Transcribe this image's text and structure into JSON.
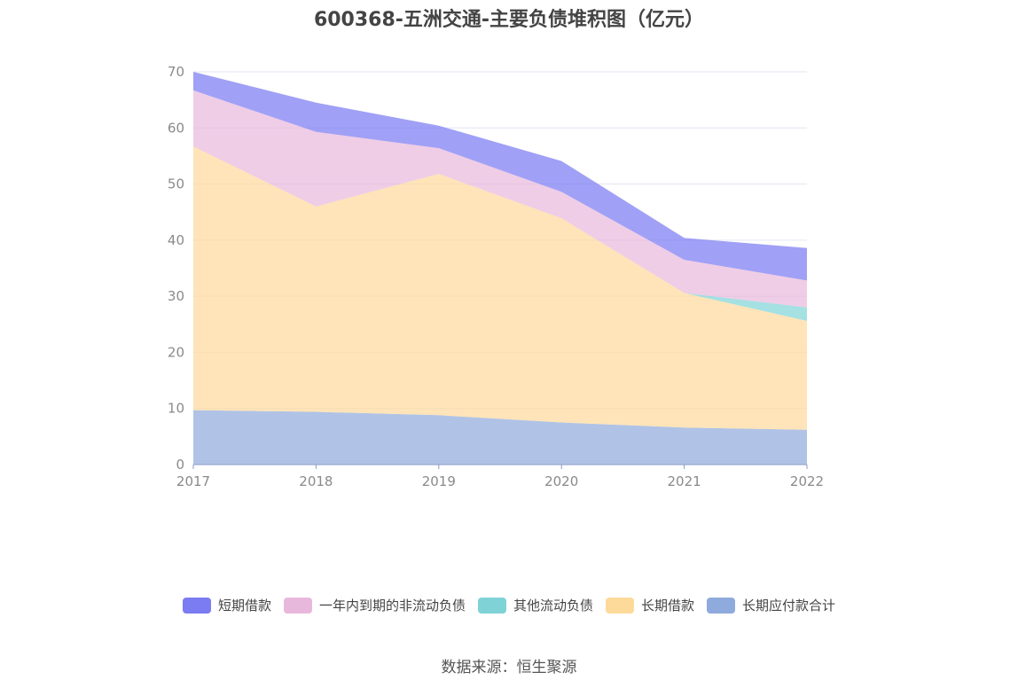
{
  "chart_data": {
    "type": "area",
    "stacked": true,
    "title": "600368-五洲交通-主要负债堆积图（亿元）",
    "categories": [
      "2017",
      "2018",
      "2019",
      "2020",
      "2021",
      "2022"
    ],
    "ylim": [
      0,
      70
    ],
    "yticks": [
      "0",
      "10",
      "20",
      "30",
      "40",
      "50",
      "60",
      "70"
    ],
    "grid": true,
    "legend_position": "bottom",
    "series": [
      {
        "name": "长期应付款合计",
        "color": "#8faadc",
        "values": [
          9.7,
          9.4,
          8.8,
          7.5,
          6.6,
          6.2
        ]
      },
      {
        "name": "长期借款",
        "color": "#fdd99a",
        "values": [
          47.0,
          36.6,
          43.0,
          36.4,
          24.0,
          19.4
        ]
      },
      {
        "name": "其他流动负债",
        "color": "#7fd3d7",
        "values": [
          0,
          0,
          0,
          0,
          0,
          2.4
        ]
      },
      {
        "name": "一年内到期的非流动负债",
        "color": "#e8b8dc",
        "values": [
          10.0,
          13.3,
          4.6,
          4.7,
          5.9,
          4.8
        ]
      },
      {
        "name": "短期借款",
        "color": "#7b7bf2",
        "values": [
          3.3,
          5.2,
          4.0,
          5.5,
          3.9,
          5.8
        ]
      }
    ],
    "legend_order": [
      "短期借款",
      "一年内到期的非流动负债",
      "其他流动负债",
      "长期借款",
      "长期应付款合计"
    ]
  },
  "source_text": "数据来源：恒生聚源"
}
